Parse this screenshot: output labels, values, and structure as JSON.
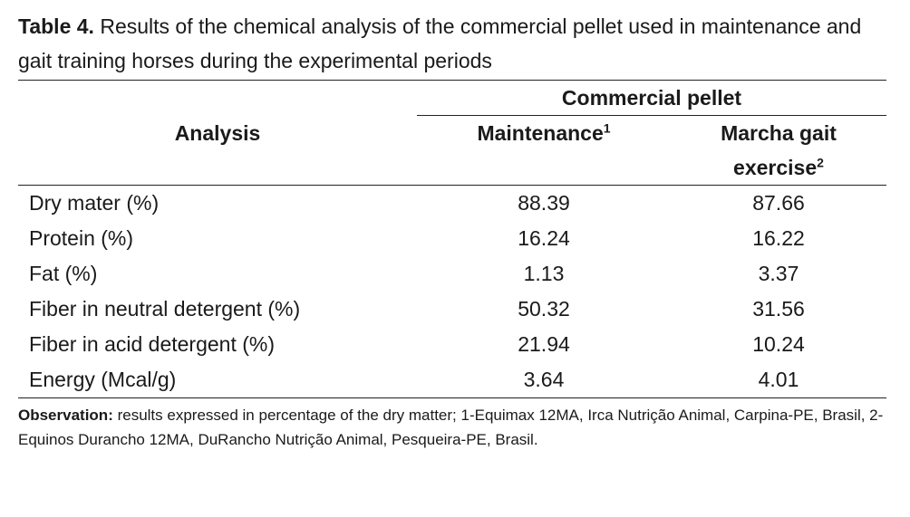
{
  "caption": {
    "label": "Table 4.",
    "text": " Results of the chemical analysis of the commercial pellet used in maintenance and gait training horses during the experimental periods"
  },
  "headers": {
    "analysis": "Analysis",
    "group": "Commercial pellet",
    "col1": "Maintenance",
    "col1_sup": "1",
    "col2_line1": "Marcha gait",
    "col2_line2": "exercise",
    "col2_sup": "2"
  },
  "rows": [
    {
      "label": "Dry mater (%)",
      "maintenance": "88.39",
      "marcha": "87.66"
    },
    {
      "label": "Protein (%)",
      "maintenance": "16.24",
      "marcha": "16.22"
    },
    {
      "label": "Fat (%)",
      "maintenance": "1.13",
      "marcha": "3.37"
    },
    {
      "label": "Fiber in neutral detergent (%)",
      "maintenance": "50.32",
      "marcha": "31.56"
    },
    {
      "label": "Fiber in acid detergent (%)",
      "maintenance": "21.94",
      "marcha": "10.24"
    },
    {
      "label": "Energy (Mcal/g)",
      "maintenance": "3.64",
      "marcha": "4.01"
    }
  ],
  "note": {
    "label": "Observation:",
    "text": " results expressed in percentage of the dry matter; 1-Equimax 12MA, Irca Nutrição Animal, Carpina-PE, Brasil, 2- Equinos Durancho 12MA, DuRancho Nutrição Animal, Pesqueira-PE, Brasil."
  }
}
